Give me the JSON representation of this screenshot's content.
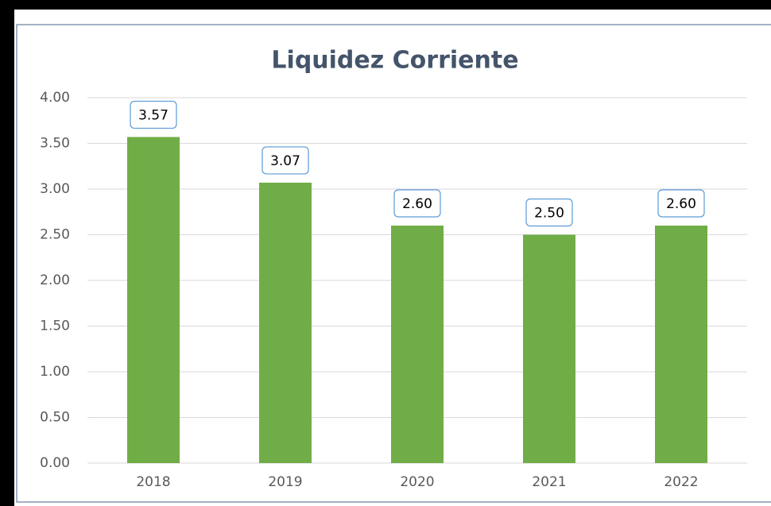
{
  "chart_data": {
    "type": "bar",
    "title": "Liquidez Corriente",
    "categories": [
      "2018",
      "2019",
      "2020",
      "2021",
      "2022"
    ],
    "values": [
      3.57,
      3.07,
      2.6,
      2.5,
      2.6
    ],
    "value_labels": [
      "3.57",
      "3.07",
      "2.60",
      "2.50",
      "2.60"
    ],
    "color": "#70ad47",
    "ylim": [
      0,
      4
    ],
    "yticks": [
      {
        "value": 0,
        "label": "0.00"
      },
      {
        "value": 0.5,
        "label": "0.50"
      },
      {
        "value": 1,
        "label": "1.00"
      },
      {
        "value": 1.5,
        "label": "1.50"
      },
      {
        "value": 2,
        "label": "2.00"
      },
      {
        "value": 2.5,
        "label": "2.50"
      },
      {
        "value": 3,
        "label": "3.00"
      },
      {
        "value": 3.5,
        "label": "3.50"
      },
      {
        "value": 4,
        "label": "4.00"
      }
    ],
    "grid": true
  }
}
